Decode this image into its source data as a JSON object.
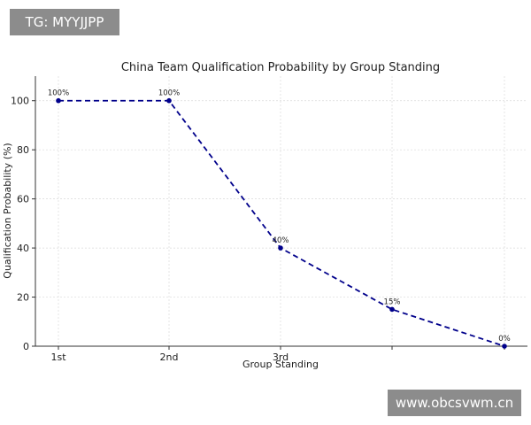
{
  "overlays": {
    "top_tag": "TG: MYYJJPP",
    "bottom_tag": "www.obcsvwm.cn"
  },
  "chart_data": {
    "type": "line",
    "title": "China Team Qualification Probability by Group Standing",
    "xlabel": "Group Standing",
    "ylabel": "Qualification Probability (%)",
    "categories": [
      "1st",
      "2nd",
      "3rd",
      "",
      ""
    ],
    "values": [
      100,
      100,
      40,
      15,
      0
    ],
    "data_labels": [
      "100%",
      "100%",
      "40%",
      "15%",
      "0%"
    ],
    "ylim": [
      0,
      110
    ],
    "yticks": [
      0,
      20,
      40,
      60,
      80,
      100
    ],
    "grid": true,
    "line_style": "dashed",
    "colors": {
      "line": "#00008b",
      "grid": "#d9d9d9"
    }
  }
}
